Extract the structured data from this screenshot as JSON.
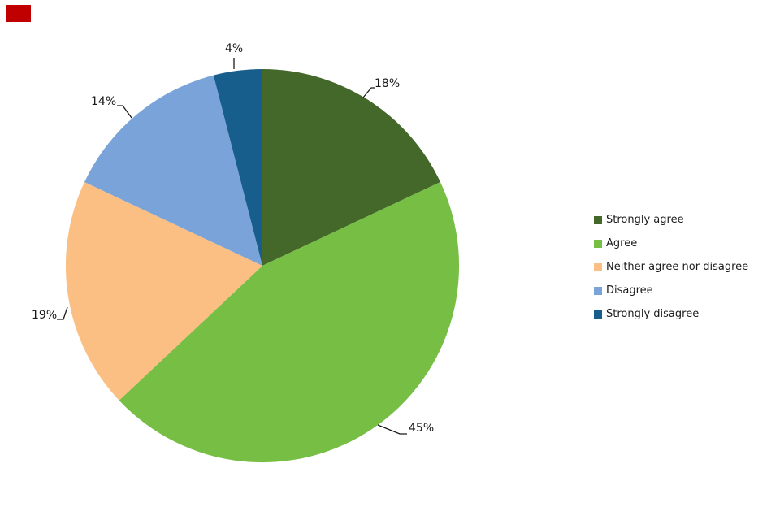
{
  "marker": {
    "color": "#C00000"
  },
  "chart_data": {
    "type": "pie",
    "title": "",
    "categories": [
      "Strongly agree",
      "Agree",
      "Neither agree nor disagree",
      "Disagree",
      "Strongly disagree"
    ],
    "values": [
      18,
      45,
      19,
      14,
      4
    ],
    "labels": [
      "18%",
      "45%",
      "19%",
      "14%",
      "4%"
    ],
    "colors": [
      "#44682A",
      "#77BE45",
      "#FBBE83",
      "#7AA4D9",
      "#175E8D"
    ],
    "unit": "%",
    "start_angle_deg": 0,
    "direction": "clockwise",
    "legend_position": "right",
    "data_label_color": "#1a1a1a",
    "leader_line_color": "#1a1a1a"
  }
}
